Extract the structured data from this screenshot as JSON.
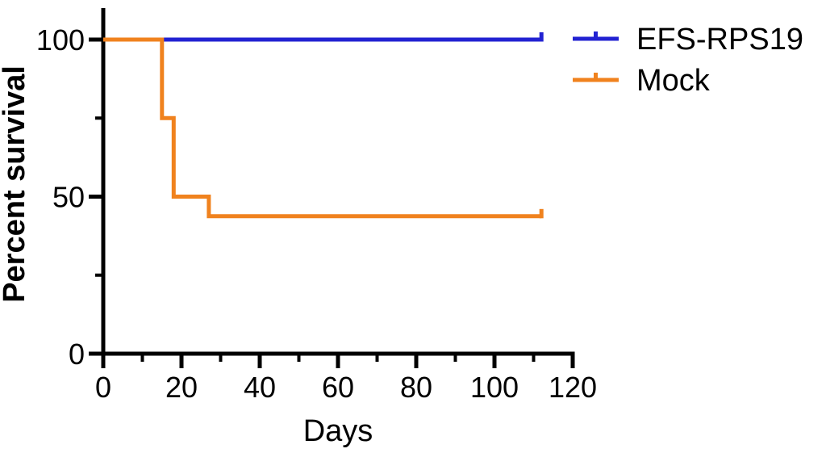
{
  "chart_data": {
    "type": "line",
    "subtype": "kaplan-meier-step",
    "title": "",
    "xlabel": "Days",
    "ylabel": "Percent survival",
    "xlim": [
      0,
      120
    ],
    "ylim": [
      0,
      100
    ],
    "x_major_ticks": [
      0,
      20,
      40,
      60,
      80,
      100,
      120
    ],
    "x_minor_ticks": [
      10,
      30,
      50,
      70,
      90,
      110
    ],
    "y_major_ticks": [
      0,
      50,
      100
    ],
    "y_minor_ticks": [
      25,
      75
    ],
    "grid": false,
    "legend_position": "top-right",
    "axis_color": "#000000",
    "series": [
      {
        "name": "EFS-RPS19",
        "color": "#2222D2",
        "censor_at_end": true,
        "points": [
          {
            "x": 0,
            "y": 100
          },
          {
            "x": 112,
            "y": 100
          }
        ]
      },
      {
        "name": "Mock",
        "color": "#F0821E",
        "censor_at_end": true,
        "points": [
          {
            "x": 0,
            "y": 100
          },
          {
            "x": 15,
            "y": 100
          },
          {
            "x": 15,
            "y": 75
          },
          {
            "x": 18,
            "y": 75
          },
          {
            "x": 18,
            "y": 50
          },
          {
            "x": 27,
            "y": 50
          },
          {
            "x": 27,
            "y": 43.75
          },
          {
            "x": 112,
            "y": 43.75
          }
        ]
      }
    ]
  }
}
